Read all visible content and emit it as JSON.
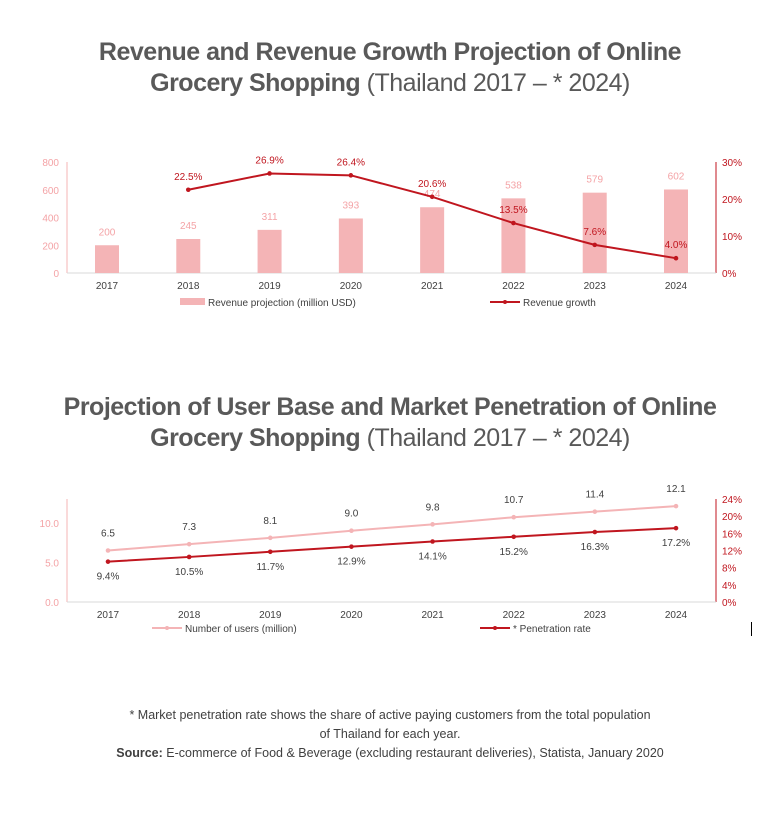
{
  "charts_titles": [
    {
      "bold": "Revenue and Revenue Growth Projection of Online",
      "bold2": "Grocery Shopping",
      "normal": " (Thailand 2017 – * 2024)"
    },
    {
      "bold": "Projection of User Base and Market Penetration of Online",
      "bold2": "Grocery Shopping",
      "normal": " (Thailand 2017 – * 2024)"
    }
  ],
  "chart_data": [
    {
      "type": "bar+line",
      "categories": [
        "2017",
        "2018",
        "2019",
        "2020",
        "2021",
        "2022",
        "2023",
        "2024"
      ],
      "series": [
        {
          "name": "Revenue projection (million USD)",
          "type": "bar",
          "axis": "left",
          "values": [
            200,
            245,
            311,
            393,
            474,
            538,
            579,
            602
          ],
          "labels": [
            "200",
            "245",
            "311",
            "393",
            "474",
            "538",
            "579",
            "602"
          ],
          "color": "#f4b4b6"
        },
        {
          "name": "Revenue growth",
          "type": "line",
          "axis": "right",
          "values": [
            null,
            22.5,
            26.9,
            26.4,
            20.6,
            13.5,
            7.6,
            4.0
          ],
          "labels": [
            "",
            "22.5%",
            "26.9%",
            "26.4%",
            "20.6%",
            "13.5%",
            "7.6%",
            "4.0%"
          ],
          "color": "#c0161f"
        }
      ],
      "yleft": {
        "lim": [
          0,
          800
        ],
        "ticks": [
          "0",
          "200",
          "400",
          "600",
          "800"
        ]
      },
      "yright": {
        "lim": [
          0,
          30
        ],
        "ticks": [
          "0%",
          "10%",
          "20%",
          "30%"
        ]
      },
      "legend": "bottom",
      "grid": false
    },
    {
      "type": "line",
      "categories": [
        "2017",
        "2018",
        "2019",
        "2020",
        "2021",
        "2022",
        "2023",
        "2024"
      ],
      "series": [
        {
          "name": "Number of users (million)",
          "axis": "left",
          "values": [
            6.5,
            7.3,
            8.1,
            9.0,
            9.8,
            10.7,
            11.4,
            12.1
          ],
          "labels": [
            "6.5",
            "7.3",
            "8.1",
            "9.0",
            "9.8",
            "10.7",
            "11.4",
            "12.1"
          ],
          "color": "#f4b4b6"
        },
        {
          "name": "* Penetration rate",
          "axis": "right",
          "values": [
            9.4,
            10.5,
            11.7,
            12.9,
            14.1,
            15.2,
            16.3,
            17.2
          ],
          "labels": [
            "9.4%",
            "10.5%",
            "11.7%",
            "12.9%",
            "14.1%",
            "15.2%",
            "16.3%",
            "17.2%"
          ],
          "color": "#c0161f"
        }
      ],
      "yleft": {
        "lim": [
          0,
          13
        ],
        "ticks": [
          "0.0",
          "5.0",
          "10.0"
        ],
        "tickvals": [
          0,
          5,
          10
        ]
      },
      "yright": {
        "lim": [
          0,
          24
        ],
        "ticks": [
          "0%",
          "4%",
          "8%",
          "12%",
          "16%",
          "20%",
          "24%"
        ]
      },
      "legend": "bottom",
      "grid": false
    }
  ],
  "footnote": {
    "line1": "* Market penetration rate shows the share of active paying customers from the total population",
    "line2": "of Thailand for each year.",
    "source_label": "Source:",
    "source_text": " E-commerce of Food & Beverage (excluding restaurant deliveries), Statista, January 2020"
  }
}
